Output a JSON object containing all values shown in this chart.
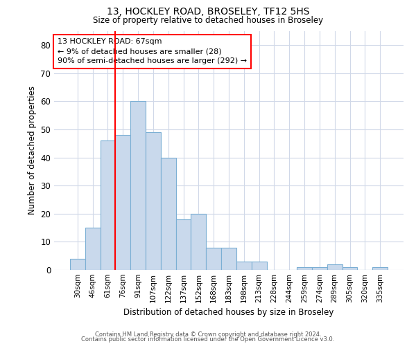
{
  "title_line1": "13, HOCKLEY ROAD, BROSELEY, TF12 5HS",
  "title_line2": "Size of property relative to detached houses in Broseley",
  "xlabel": "Distribution of detached houses by size in Broseley",
  "ylabel": "Number of detached properties",
  "bar_labels": [
    "30sqm",
    "46sqm",
    "61sqm",
    "76sqm",
    "91sqm",
    "107sqm",
    "122sqm",
    "137sqm",
    "152sqm",
    "168sqm",
    "183sqm",
    "198sqm",
    "213sqm",
    "228sqm",
    "244sqm",
    "259sqm",
    "274sqm",
    "289sqm",
    "305sqm",
    "320sqm",
    "335sqm"
  ],
  "bar_values": [
    4,
    15,
    46,
    48,
    60,
    49,
    40,
    18,
    20,
    8,
    8,
    3,
    3,
    0,
    0,
    1,
    1,
    2,
    1,
    0,
    1
  ],
  "bar_color": "#c9d9ec",
  "bar_edge_color": "#7bafd4",
  "red_line_index": 2,
  "annotation_line1": "13 HOCKLEY ROAD: 67sqm",
  "annotation_line2": "← 9% of detached houses are smaller (28)",
  "annotation_line3": "90% of semi-detached houses are larger (292) →",
  "ylim": [
    0,
    85
  ],
  "yticks": [
    0,
    10,
    20,
    30,
    40,
    50,
    60,
    70,
    80
  ],
  "footer_line1": "Contains HM Land Registry data © Crown copyright and database right 2024.",
  "footer_line2": "Contains public sector information licensed under the Open Government Licence v3.0.",
  "background_color": "#ffffff",
  "grid_color": "#d0d8e8"
}
